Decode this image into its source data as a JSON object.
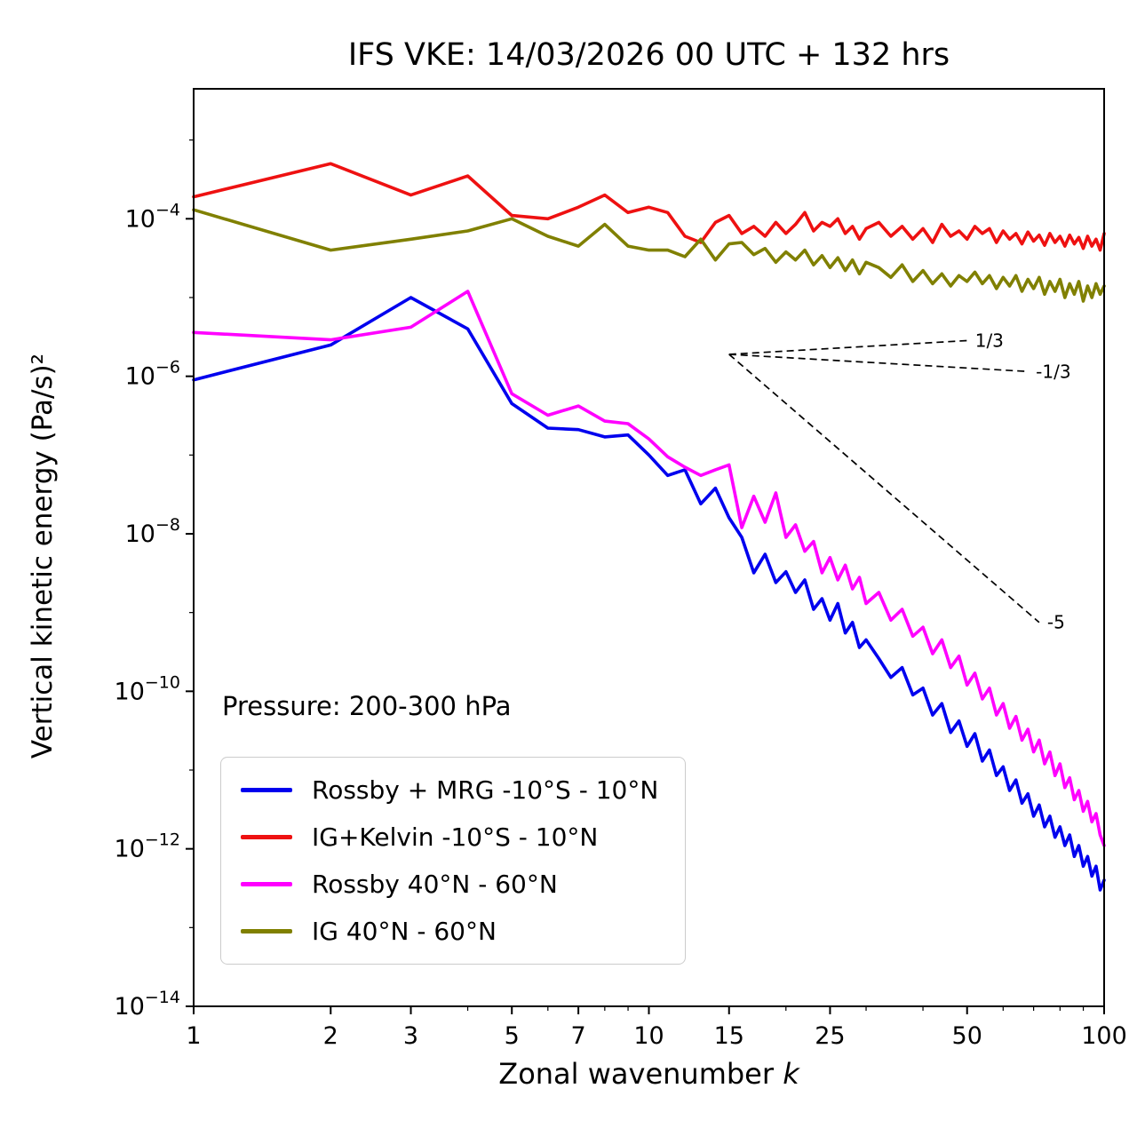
{
  "title": "IFS VKE: 14/03/2026 00 UTC + 132 hrs",
  "axes": {
    "xlabel": "Zonal wavenumber ",
    "xlabel_var": "k",
    "ylabel": "Vertical kinetic energy (Pa/s)²",
    "x_scale": "log",
    "y_scale": "log",
    "xlim": [
      1,
      100
    ],
    "ylim_exponents": [
      -14,
      -2.35
    ],
    "x_ticks": [
      {
        "v": 1,
        "label": "1"
      },
      {
        "v": 2,
        "label": "2"
      },
      {
        "v": 3,
        "label": "3"
      },
      {
        "v": 5,
        "label": "5"
      },
      {
        "v": 7,
        "label": "7"
      },
      {
        "v": 10,
        "label": "10"
      },
      {
        "v": 15,
        "label": "15"
      },
      {
        "v": 25,
        "label": "25"
      },
      {
        "v": 50,
        "label": "50"
      },
      {
        "v": 100,
        "label": "100"
      }
    ],
    "x_minor": [
      4,
      6,
      8,
      9,
      20,
      30,
      40,
      60,
      70,
      80,
      90
    ],
    "y_ticks": [
      {
        "exp": -14
      },
      {
        "exp": -12
      },
      {
        "exp": -10
      },
      {
        "exp": -8
      },
      {
        "exp": -6
      },
      {
        "exp": -4
      }
    ],
    "y_minor_exponents": [
      -13,
      -11,
      -9,
      -7,
      -5,
      -3
    ]
  },
  "annotation": {
    "pressure": "Pressure: 200-300 hPa"
  },
  "guides": [
    {
      "label": "1/3",
      "x": [
        15,
        50
      ],
      "y": [
        1.9e-06,
        2.84e-06
      ]
    },
    {
      "label": "-1/3",
      "x": [
        15,
        68
      ],
      "y": [
        1.9e-06,
        1.15e-06
      ]
    },
    {
      "label": "-5",
      "x": [
        15,
        72
      ],
      "y": [
        1.9e-06,
        7.5e-10
      ]
    }
  ],
  "chart_data": {
    "type": "line",
    "title": "IFS VKE: 14/03/2026 00 UTC + 132 hrs",
    "xlabel": "Zonal wavenumber k",
    "ylabel": "Vertical kinetic energy (Pa/s)^2",
    "x_scale": "log",
    "y_scale": "log",
    "legend_position": "lower left",
    "series": [
      {
        "name": "Rossby + MRG -10°S - 10°N",
        "color": "#0000ee",
        "points": [
          [
            1,
            9e-07
          ],
          [
            2,
            2.5e-06
          ],
          [
            3,
            1e-05
          ],
          [
            4,
            4e-06
          ],
          [
            5,
            4.5e-07
          ],
          [
            6,
            2.2e-07
          ],
          [
            7,
            2.1e-07
          ],
          [
            8,
            1.7e-07
          ],
          [
            9,
            1.8e-07
          ],
          [
            10,
            1e-07
          ],
          [
            11,
            5.5e-08
          ],
          [
            12,
            6.5e-08
          ],
          [
            13,
            2.4e-08
          ],
          [
            14,
            3.8e-08
          ],
          [
            15,
            1.6e-08
          ],
          [
            16,
            9e-09
          ],
          [
            17,
            3.2e-09
          ],
          [
            18,
            5.5e-09
          ],
          [
            19,
            2.4e-09
          ],
          [
            20,
            3.3e-09
          ],
          [
            21,
            1.8e-09
          ],
          [
            22,
            2.6e-09
          ],
          [
            23,
            1.1e-09
          ],
          [
            24,
            1.5e-09
          ],
          [
            25,
            8e-10
          ],
          [
            26,
            1.3e-09
          ],
          [
            27,
            5.5e-10
          ],
          [
            28,
            7.5e-10
          ],
          [
            29,
            3.6e-10
          ],
          [
            30,
            4.5e-10
          ],
          [
            32,
            2.6e-10
          ],
          [
            34,
            1.5e-10
          ],
          [
            36,
            2e-10
          ],
          [
            38,
            9e-11
          ],
          [
            40,
            1.1e-10
          ],
          [
            42,
            5e-11
          ],
          [
            44,
            7e-11
          ],
          [
            46,
            3e-11
          ],
          [
            48,
            4.2e-11
          ],
          [
            50,
            2e-11
          ],
          [
            52,
            2.9e-11
          ],
          [
            54,
            1.3e-11
          ],
          [
            56,
            1.8e-11
          ],
          [
            58,
            8.5e-12
          ],
          [
            60,
            1.1e-11
          ],
          [
            62,
            5.5e-12
          ],
          [
            64,
            7.5e-12
          ],
          [
            66,
            3.8e-12
          ],
          [
            68,
            5e-12
          ],
          [
            70,
            2.6e-12
          ],
          [
            72,
            3.6e-12
          ],
          [
            74,
            1.9e-12
          ],
          [
            76,
            2.6e-12
          ],
          [
            78,
            1.4e-12
          ],
          [
            80,
            1.9e-12
          ],
          [
            82,
            1.1e-12
          ],
          [
            84,
            1.5e-12
          ],
          [
            86,
            8e-13
          ],
          [
            88,
            1.1e-12
          ],
          [
            90,
            6e-13
          ],
          [
            92,
            8e-13
          ],
          [
            94,
            4.5e-13
          ],
          [
            96,
            6e-13
          ],
          [
            98,
            3e-13
          ],
          [
            100,
            4e-13
          ]
        ]
      },
      {
        "name": "IG+Kelvin -10°S - 10°N",
        "color": "#ee1111",
        "points": [
          [
            1,
            0.00019
          ],
          [
            2,
            0.0005
          ],
          [
            3,
            0.0002
          ],
          [
            4,
            0.00035
          ],
          [
            5,
            0.00011
          ],
          [
            6,
            0.0001
          ],
          [
            7,
            0.00014
          ],
          [
            8,
            0.0002
          ],
          [
            9,
            0.00012
          ],
          [
            10,
            0.00014
          ],
          [
            11,
            0.00012
          ],
          [
            12,
            6e-05
          ],
          [
            13,
            5e-05
          ],
          [
            14,
            9e-05
          ],
          [
            15,
            0.00011
          ],
          [
            16,
            6.5e-05
          ],
          [
            17,
            8e-05
          ],
          [
            18,
            6e-05
          ],
          [
            19,
            9e-05
          ],
          [
            20,
            6.5e-05
          ],
          [
            21,
            8.5e-05
          ],
          [
            22,
            0.00012
          ],
          [
            23,
            7e-05
          ],
          [
            24,
            9e-05
          ],
          [
            25,
            8e-05
          ],
          [
            26,
            0.0001
          ],
          [
            27,
            6.5e-05
          ],
          [
            28,
            8e-05
          ],
          [
            29,
            5.5e-05
          ],
          [
            30,
            7.5e-05
          ],
          [
            32,
            9e-05
          ],
          [
            34,
            6e-05
          ],
          [
            36,
            8e-05
          ],
          [
            38,
            5.5e-05
          ],
          [
            40,
            7.5e-05
          ],
          [
            42,
            5e-05
          ],
          [
            44,
            8.5e-05
          ],
          [
            46,
            6e-05
          ],
          [
            48,
            7e-05
          ],
          [
            50,
            5.5e-05
          ],
          [
            52,
            8e-05
          ],
          [
            54,
            6.5e-05
          ],
          [
            56,
            7.5e-05
          ],
          [
            58,
            5e-05
          ],
          [
            60,
            7e-05
          ],
          [
            62,
            5.5e-05
          ],
          [
            64,
            6.5e-05
          ],
          [
            66,
            4.8e-05
          ],
          [
            68,
            6.8e-05
          ],
          [
            70,
            5.2e-05
          ],
          [
            72,
            6.2e-05
          ],
          [
            74,
            4.6e-05
          ],
          [
            76,
            6.5e-05
          ],
          [
            78,
            5e-05
          ],
          [
            80,
            6e-05
          ],
          [
            82,
            4.5e-05
          ],
          [
            84,
            6.2e-05
          ],
          [
            86,
            4.8e-05
          ],
          [
            88,
            5.8e-05
          ],
          [
            90,
            4.2e-05
          ],
          [
            92,
            6e-05
          ],
          [
            94,
            4.5e-05
          ],
          [
            96,
            5.5e-05
          ],
          [
            98,
            4e-05
          ],
          [
            100,
            6.5e-05
          ]
        ]
      },
      {
        "name": "Rossby 40°N - 60°N",
        "color": "#ff00ff",
        "points": [
          [
            1,
            3.6e-06
          ],
          [
            2,
            2.9e-06
          ],
          [
            3,
            4.2e-06
          ],
          [
            4,
            1.2e-05
          ],
          [
            5,
            6e-07
          ],
          [
            6,
            3.2e-07
          ],
          [
            7,
            4.2e-07
          ],
          [
            8,
            2.7e-07
          ],
          [
            9,
            2.5e-07
          ],
          [
            10,
            1.6e-07
          ],
          [
            11,
            9.5e-08
          ],
          [
            12,
            7e-08
          ],
          [
            13,
            5.5e-08
          ],
          [
            14,
            6.5e-08
          ],
          [
            15,
            7.5e-08
          ],
          [
            16,
            1.2e-08
          ],
          [
            17,
            3e-08
          ],
          [
            18,
            1.4e-08
          ],
          [
            19,
            3.3e-08
          ],
          [
            20,
            9e-09
          ],
          [
            21,
            1.3e-08
          ],
          [
            22,
            6e-09
          ],
          [
            23,
            8e-09
          ],
          [
            24,
            3.2e-09
          ],
          [
            25,
            5e-09
          ],
          [
            26,
            2.6e-09
          ],
          [
            27,
            4e-09
          ],
          [
            28,
            2e-09
          ],
          [
            29,
            2.8e-09
          ],
          [
            30,
            1.3e-09
          ],
          [
            32,
            1.8e-09
          ],
          [
            34,
            8e-10
          ],
          [
            36,
            1.1e-09
          ],
          [
            38,
            5e-10
          ],
          [
            40,
            6.5e-10
          ],
          [
            42,
            3e-10
          ],
          [
            44,
            4.5e-10
          ],
          [
            46,
            2e-10
          ],
          [
            48,
            2.8e-10
          ],
          [
            50,
            1.2e-10
          ],
          [
            52,
            1.7e-10
          ],
          [
            54,
            8e-11
          ],
          [
            56,
            1.1e-10
          ],
          [
            58,
            5e-11
          ],
          [
            60,
            7e-11
          ],
          [
            62,
            3.4e-11
          ],
          [
            64,
            4.8e-11
          ],
          [
            66,
            2.4e-11
          ],
          [
            68,
            3.3e-11
          ],
          [
            70,
            1.7e-11
          ],
          [
            72,
            2.4e-11
          ],
          [
            74,
            1.2e-11
          ],
          [
            76,
            1.7e-11
          ],
          [
            78,
            8.5e-12
          ],
          [
            80,
            1.2e-11
          ],
          [
            82,
            6e-12
          ],
          [
            84,
            8e-12
          ],
          [
            86,
            4.2e-12
          ],
          [
            88,
            5.5e-12
          ],
          [
            90,
            3e-12
          ],
          [
            92,
            4e-12
          ],
          [
            94,
            2.2e-12
          ],
          [
            96,
            2.8e-12
          ],
          [
            98,
            1.5e-12
          ],
          [
            100,
            1.1e-12
          ]
        ]
      },
      {
        "name": "IG 40°N - 60°N",
        "color": "#808000",
        "points": [
          [
            1,
            0.00013
          ],
          [
            2,
            4e-05
          ],
          [
            3,
            5.5e-05
          ],
          [
            4,
            7e-05
          ],
          [
            5,
            0.0001
          ],
          [
            6,
            6e-05
          ],
          [
            7,
            4.5e-05
          ],
          [
            8,
            8.5e-05
          ],
          [
            9,
            4.5e-05
          ],
          [
            10,
            4e-05
          ],
          [
            11,
            4e-05
          ],
          [
            12,
            3.3e-05
          ],
          [
            13,
            5.5e-05
          ],
          [
            14,
            3e-05
          ],
          [
            15,
            4.8e-05
          ],
          [
            16,
            5e-05
          ],
          [
            17,
            3.5e-05
          ],
          [
            18,
            4.2e-05
          ],
          [
            19,
            2.8e-05
          ],
          [
            20,
            3.8e-05
          ],
          [
            21,
            3e-05
          ],
          [
            22,
            4e-05
          ],
          [
            23,
            2.6e-05
          ],
          [
            24,
            3.4e-05
          ],
          [
            25,
            2.4e-05
          ],
          [
            26,
            3.2e-05
          ],
          [
            27,
            2.2e-05
          ],
          [
            28,
            3e-05
          ],
          [
            29,
            2e-05
          ],
          [
            30,
            2.8e-05
          ],
          [
            32,
            2.4e-05
          ],
          [
            34,
            1.8e-05
          ],
          [
            36,
            2.6e-05
          ],
          [
            38,
            1.6e-05
          ],
          [
            40,
            2.2e-05
          ],
          [
            42,
            1.5e-05
          ],
          [
            44,
            2e-05
          ],
          [
            46,
            1.4e-05
          ],
          [
            48,
            1.9e-05
          ],
          [
            50,
            1.6e-05
          ],
          [
            52,
            2.1e-05
          ],
          [
            54,
            1.5e-05
          ],
          [
            56,
            1.9e-05
          ],
          [
            58,
            1.3e-05
          ],
          [
            60,
            1.8e-05
          ],
          [
            62,
            1.4e-05
          ],
          [
            64,
            1.9e-05
          ],
          [
            66,
            1.2e-05
          ],
          [
            68,
            1.7e-05
          ],
          [
            70,
            1.3e-05
          ],
          [
            72,
            1.8e-05
          ],
          [
            74,
            1.1e-05
          ],
          [
            76,
            1.6e-05
          ],
          [
            78,
            1.2e-05
          ],
          [
            80,
            1.7e-05
          ],
          [
            82,
            1e-05
          ],
          [
            84,
            1.5e-05
          ],
          [
            86,
            1.1e-05
          ],
          [
            88,
            1.6e-05
          ],
          [
            90,
            9e-06
          ],
          [
            92,
            1.4e-05
          ],
          [
            94,
            1e-05
          ],
          [
            96,
            1.5e-05
          ],
          [
            98,
            1.1e-05
          ],
          [
            100,
            1.4e-05
          ]
        ]
      }
    ]
  }
}
